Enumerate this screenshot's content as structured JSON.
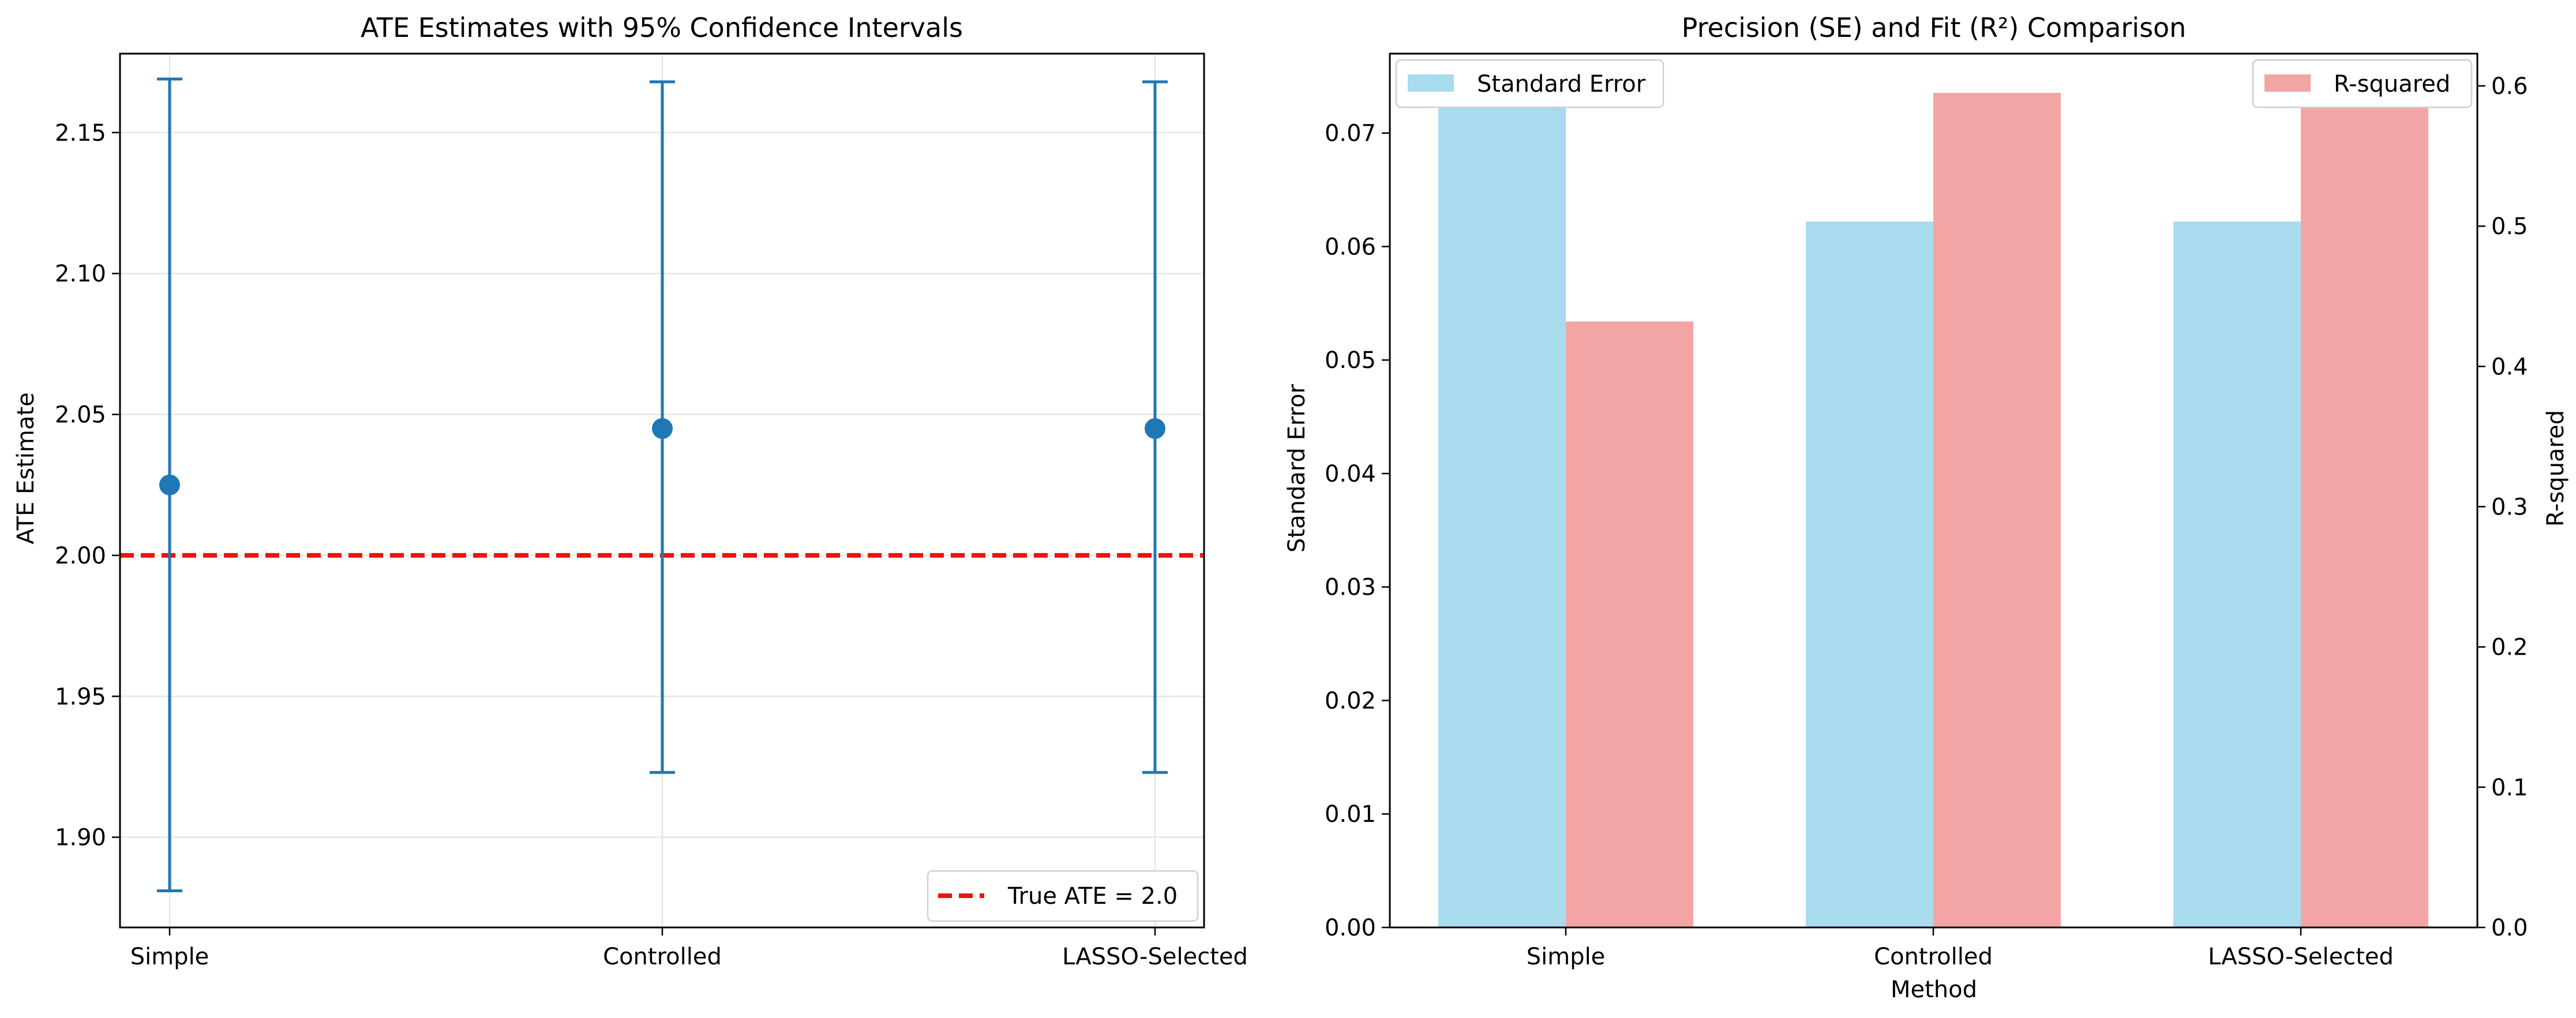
{
  "chart_data": [
    {
      "type": "scatter",
      "title": "ATE Estimates with 95% Confidence Intervals",
      "xlabel": "",
      "ylabel": "ATE Estimate",
      "categories": [
        "Simple",
        "Controlled",
        "LASSO-Selected"
      ],
      "estimates": [
        2.025,
        2.045,
        2.045
      ],
      "ci_lower": [
        1.881,
        1.923,
        1.923
      ],
      "ci_upper": [
        2.169,
        2.168,
        2.168
      ],
      "ylim": [
        1.868,
        2.178
      ],
      "yticks": [
        "1.90",
        "1.95",
        "2.00",
        "2.05",
        "2.10",
        "2.15"
      ],
      "reference_line": {
        "value": 2.0,
        "label": "True ATE = 2.0",
        "color": "#e8150f",
        "style": "dashed"
      },
      "series_color": "#1f77b4",
      "grid": true,
      "legend_position": "lower-right"
    },
    {
      "type": "bar",
      "title": "Precision (SE) and Fit (R²) Comparison",
      "xlabel": "Method",
      "categories": [
        "Simple",
        "Controlled",
        "LASSO-Selected"
      ],
      "series": [
        {
          "name": "Standard Error",
          "values": [
            0.0735,
            0.0622,
            0.0622
          ],
          "axis": "left",
          "color": "#a8dbee"
        },
        {
          "name": "R-squared",
          "values": [
            0.432,
            0.595,
            0.595
          ],
          "axis": "right",
          "color": "#f3a5a5"
        }
      ],
      "ylabel_left": "Standard Error",
      "ylabel_left_color": "#0000ff",
      "ylabel_right": "R-squared",
      "ylabel_right_color": "#ff0000",
      "ylim_left": [
        0,
        0.077
      ],
      "ylim_right": [
        0,
        0.623
      ],
      "yticks_left": [
        "0.00",
        "0.01",
        "0.02",
        "0.03",
        "0.04",
        "0.05",
        "0.06",
        "0.07"
      ],
      "yticks_right": [
        "0.0",
        "0.1",
        "0.2",
        "0.3",
        "0.4",
        "0.5",
        "0.6"
      ],
      "grid": false,
      "legend_left_position": "upper-left",
      "legend_right_position": "upper-right"
    }
  ]
}
